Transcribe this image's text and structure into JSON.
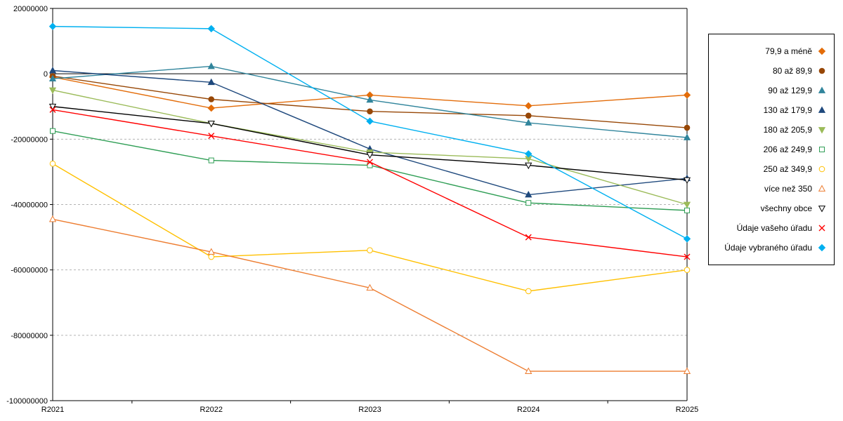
{
  "chart_data": {
    "type": "line",
    "title": "",
    "xlabel": "",
    "ylabel": "",
    "x": [
      "R2021",
      "R2022",
      "R2023",
      "R2024",
      "R2025"
    ],
    "ylim": [
      -100000000,
      20000000
    ],
    "y_ticks": [
      20000000,
      0,
      -20000000,
      -40000000,
      -60000000,
      -80000000,
      -100000000
    ],
    "grid": "horizontal-dashed",
    "legend_position": "right",
    "series": [
      {
        "name": "79,9 a méně",
        "color": "#e36c09",
        "marker": "diamond",
        "open": false,
        "values": [
          -1000000,
          -10500000,
          -6500000,
          -9800000,
          -6500000
        ]
      },
      {
        "name": "80 až 89,9",
        "color": "#974706",
        "marker": "circle",
        "open": false,
        "values": [
          -700000,
          -7800000,
          -11500000,
          -12800000,
          -16500000
        ]
      },
      {
        "name": "90 až 129,9",
        "color": "#31859c",
        "marker": "triangle-up",
        "open": false,
        "values": [
          -1500000,
          2300000,
          -8000000,
          -15000000,
          -19500000
        ]
      },
      {
        "name": "130 až 179,9",
        "color": "#1f497d",
        "marker": "triangle-up",
        "open": false,
        "values": [
          1000000,
          -2600000,
          -23000000,
          -37000000,
          -32000000
        ]
      },
      {
        "name": "180 až 205,9",
        "color": "#9bbb59",
        "marker": "triangle-down",
        "open": false,
        "values": [
          -5000000,
          -15200000,
          -24000000,
          -26000000,
          -40000000
        ]
      },
      {
        "name": "206 až 249,9",
        "color": "#2f9e55",
        "marker": "square",
        "open": true,
        "values": [
          -17500000,
          -26500000,
          -28000000,
          -39500000,
          -41800000
        ]
      },
      {
        "name": "250 až 349,9",
        "color": "#ffc000",
        "marker": "circle",
        "open": true,
        "values": [
          -27500000,
          -56000000,
          -54000000,
          -66500000,
          -60000000
        ]
      },
      {
        "name": "více než 350",
        "color": "#ed7d31",
        "marker": "triangle-up",
        "open": true,
        "values": [
          -44500000,
          -54500000,
          -65500000,
          -91000000,
          -91000000
        ]
      },
      {
        "name": "všechny obce",
        "color": "#000000",
        "marker": "triangle-down",
        "open": true,
        "values": [
          -10000000,
          -15200000,
          -24800000,
          -28000000,
          -32500000
        ]
      },
      {
        "name": "Údaje vašeho úřadu",
        "color": "#ff0000",
        "marker": "x",
        "open": true,
        "values": [
          -11000000,
          -19000000,
          -27000000,
          -50000000,
          -56000000
        ]
      },
      {
        "name": "Údaje vybraného úřadu",
        "color": "#00b0f0",
        "marker": "diamond",
        "open": false,
        "values": [
          14500000,
          13800000,
          -14500000,
          -24500000,
          -50500000
        ]
      }
    ]
  }
}
